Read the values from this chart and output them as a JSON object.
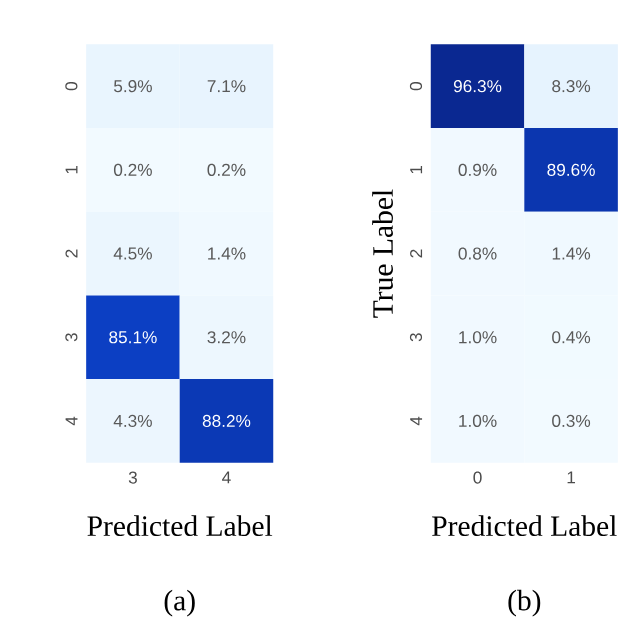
{
  "chart_data": [
    {
      "type": "heatmap",
      "xlabel": "Predicted Label",
      "categories": [
        "3",
        "4"
      ],
      "y_categories": [
        "0",
        "1",
        "2",
        "3",
        "4"
      ],
      "cells": [
        [
          5.9,
          7.1
        ],
        [
          0.2,
          0.2
        ],
        [
          4.5,
          1.4
        ],
        [
          85.1,
          3.2
        ],
        [
          4.3,
          88.2
        ]
      ],
      "cell_labels": [
        [
          "5.9%",
          "7.1%"
        ],
        [
          "0.2%",
          "0.2%"
        ],
        [
          "4.5%",
          "1.4%"
        ],
        [
          "85.1%",
          "3.2%"
        ],
        [
          "4.3%",
          "88.2%"
        ]
      ],
      "annotations": [
        "(a)"
      ]
    },
    {
      "type": "heatmap",
      "xlabel": "Predicted Label",
      "ylabel": "True Label",
      "categories": [
        "0",
        "1"
      ],
      "y_categories": [
        "0",
        "1",
        "2",
        "3",
        "4"
      ],
      "cells": [
        [
          96.3,
          8.3
        ],
        [
          0.9,
          89.6
        ],
        [
          0.8,
          1.4
        ],
        [
          1.0,
          0.4
        ],
        [
          1.0,
          0.3
        ]
      ],
      "cell_labels": [
        [
          "96.3%",
          "8.3%"
        ],
        [
          "0.9%",
          "89.6%"
        ],
        [
          "0.8%",
          "1.4%"
        ],
        [
          "1.0%",
          "0.4%"
        ],
        [
          "1.0%",
          "0.3%"
        ]
      ],
      "annotations": [
        "(b)"
      ]
    }
  ]
}
